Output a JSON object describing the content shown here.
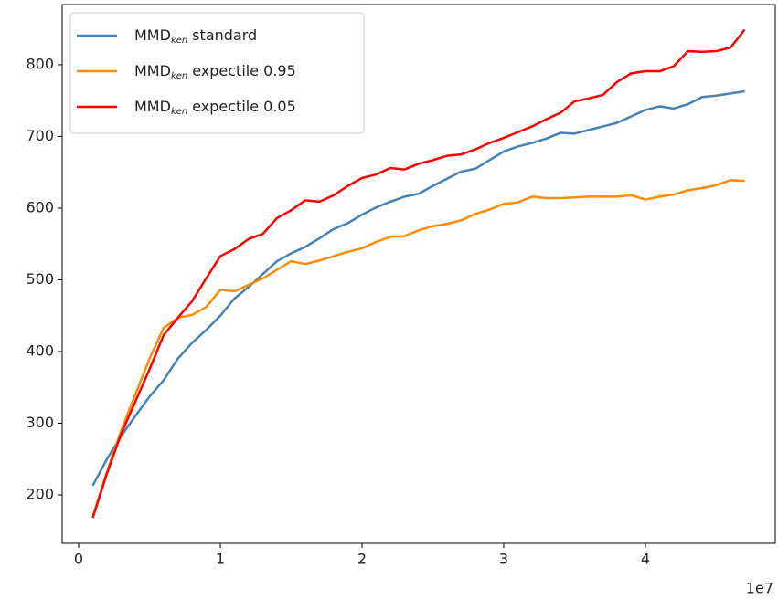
{
  "chart_data": {
    "type": "line",
    "x": [
      1000000,
      2000000,
      3000000,
      4000000,
      5000000,
      6000000,
      7000000,
      8000000,
      9000000,
      10000000,
      11000000,
      12000000,
      13000000,
      14000000,
      15000000,
      16000000,
      17000000,
      18000000,
      19000000,
      20000000,
      21000000,
      22000000,
      23000000,
      24000000,
      25000000,
      26000000,
      27000000,
      28000000,
      29000000,
      30000000,
      31000000,
      32000000,
      33000000,
      34000000,
      35000000,
      36000000,
      37000000,
      38000000,
      39000000,
      40000000,
      41000000,
      42000000,
      43000000,
      44000000,
      45000000,
      46000000,
      47000000
    ],
    "series": [
      {
        "name_prefix": "MMD",
        "name_subscript": "ken",
        "name": "standard",
        "color": "#4682b4",
        "values": [
          213,
          250,
          282,
          310,
          337,
          360,
          390,
          412,
          430,
          450,
          474,
          490,
          508,
          526,
          537,
          546,
          558,
          571,
          579,
          591,
          601,
          609,
          616,
          620,
          631,
          641,
          651,
          655,
          667,
          679,
          686,
          691,
          697,
          705,
          704,
          709,
          714,
          719,
          728,
          737,
          742,
          739,
          745,
          755,
          757,
          760,
          763
        ]
      },
      {
        "name_prefix": "MMD",
        "name_subscript": "ken",
        "name": "expectile 0.95",
        "color": "#ff8c00",
        "values": [
          170,
          232,
          290,
          340,
          390,
          433,
          447,
          451,
          462,
          486,
          484,
          493,
          502,
          514,
          526,
          522,
          527,
          533,
          539,
          544,
          553,
          560,
          561,
          569,
          575,
          578,
          583,
          592,
          598,
          606,
          608,
          616,
          614,
          614,
          615,
          616,
          616,
          616,
          618,
          612,
          616,
          619,
          625,
          628,
          632,
          639,
          638
        ]
      },
      {
        "name_prefix": "MMD",
        "name_subscript": "ken",
        "name": "expectile 0.05",
        "color": "#ff0000",
        "values": [
          168,
          230,
          285,
          330,
          375,
          423,
          447,
          470,
          502,
          533,
          543,
          557,
          564,
          586,
          597,
          611,
          609,
          618,
          631,
          642,
          647,
          656,
          654,
          662,
          667,
          673,
          675,
          682,
          691,
          698,
          706,
          714,
          724,
          733,
          749,
          753,
          758,
          776,
          788,
          791,
          791,
          798,
          819,
          818,
          819,
          824,
          849
        ]
      }
    ],
    "xlim": [
      -1160000,
      49160000
    ],
    "xticks": [
      0,
      {
        "value": 10000000,
        "label": "1"
      },
      {
        "value": 20000000,
        "label": "2"
      },
      {
        "value": 30000000,
        "label": "3"
      },
      {
        "value": 40000000,
        "label": "4"
      }
    ],
    "x_offset_label": "1e7",
    "ylim": [
      132.5,
      884
    ],
    "yticks": [
      200,
      300,
      400,
      500,
      600,
      700,
      800
    ],
    "grid": false,
    "legend": "upper left"
  }
}
